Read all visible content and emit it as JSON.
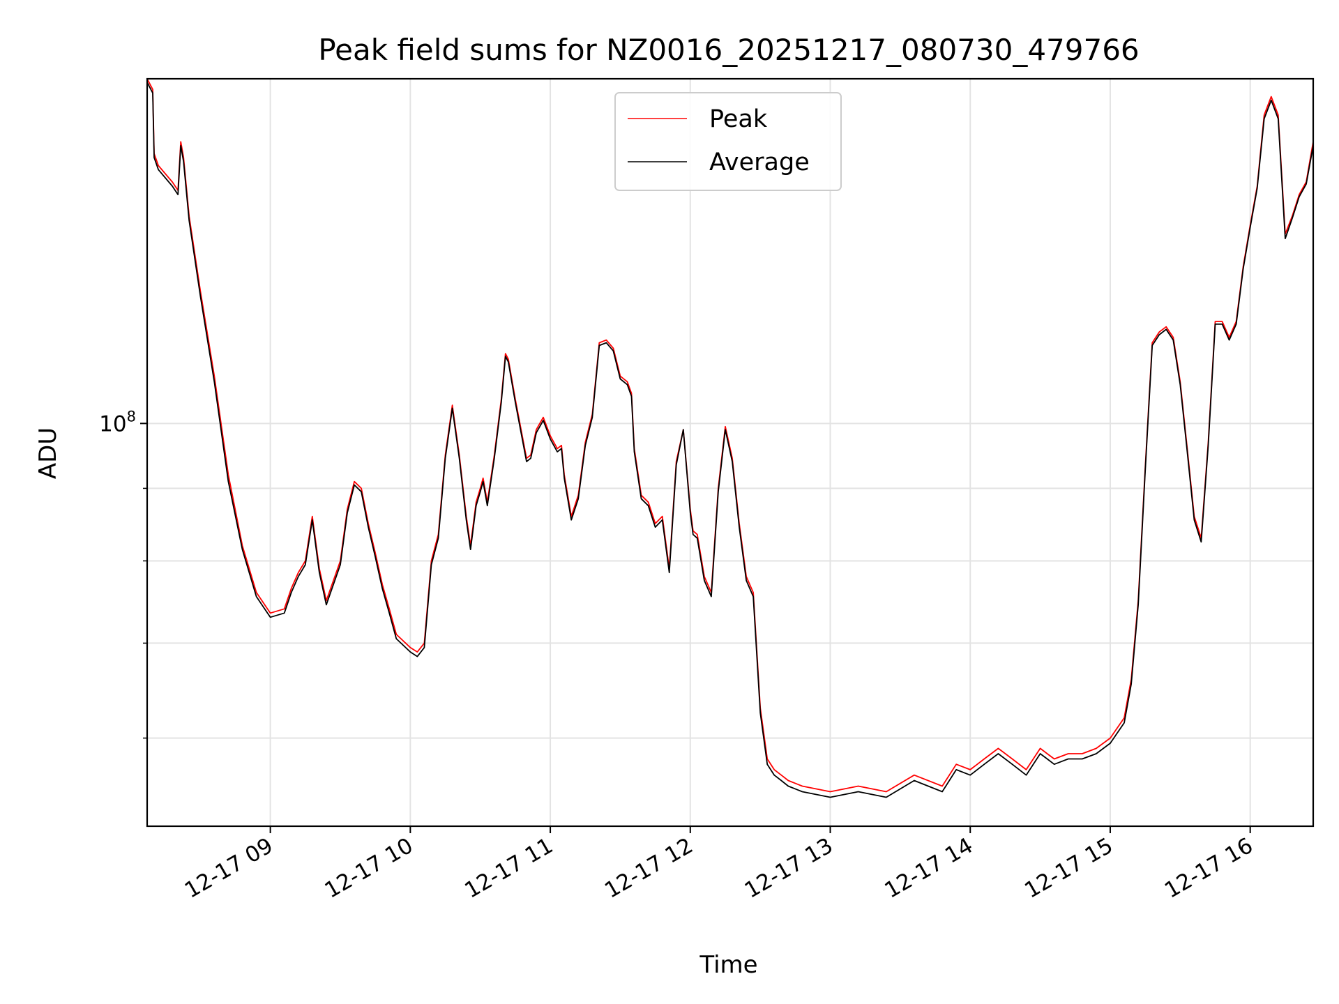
{
  "chart_data": {
    "type": "line",
    "title": "Peak field sums for NZ0016_20251217_080730_479766",
    "xlabel": "Time",
    "ylabel": "ADU",
    "x_unit": "hours since 2025-12-17 00:00",
    "xlim": [
      8.12,
      16.45
    ],
    "y_scale": "log",
    "ylim": [
      52000000,
      175000000
    ],
    "grid": true,
    "legend_position": "top-center",
    "x_ticks": [
      {
        "value": 9,
        "label": "12-17 09"
      },
      {
        "value": 10,
        "label": "12-17 10"
      },
      {
        "value": 11,
        "label": "12-17 11"
      },
      {
        "value": 12,
        "label": "12-17 12"
      },
      {
        "value": 13,
        "label": "12-17 13"
      },
      {
        "value": 14,
        "label": "12-17 14"
      },
      {
        "value": 15,
        "label": "12-17 15"
      },
      {
        "value": 16,
        "label": "12-17 16"
      }
    ],
    "y_ticks_major": [
      {
        "value": 100000000,
        "base": "10",
        "exponent": "8"
      }
    ],
    "y_ticks_minor": [
      60000000,
      70000000,
      80000000,
      90000000
    ],
    "series": [
      {
        "name": "Peak",
        "color": "#ff0000",
        "x": [
          8.12,
          8.16,
          8.17,
          8.2,
          8.3,
          8.34,
          8.36,
          8.38,
          8.42,
          8.5,
          8.6,
          8.7,
          8.8,
          8.9,
          9.0,
          9.1,
          9.15,
          9.2,
          9.25,
          9.3,
          9.35,
          9.4,
          9.5,
          9.55,
          9.6,
          9.65,
          9.7,
          9.75,
          9.8,
          9.85,
          9.9,
          10.0,
          10.05,
          10.1,
          10.15,
          10.2,
          10.25,
          10.3,
          10.35,
          10.4,
          10.43,
          10.47,
          10.5,
          10.52,
          10.55,
          10.6,
          10.65,
          10.68,
          10.7,
          10.75,
          10.8,
          10.83,
          10.86,
          10.9,
          10.95,
          11.0,
          11.05,
          11.08,
          11.1,
          11.15,
          11.2,
          11.25,
          11.3,
          11.35,
          11.4,
          11.45,
          11.5,
          11.55,
          11.58,
          11.6,
          11.65,
          11.7,
          11.75,
          11.8,
          11.85,
          11.9,
          11.95,
          12.0,
          12.02,
          12.05,
          12.1,
          12.15,
          12.2,
          12.25,
          12.3,
          12.35,
          12.4,
          12.45,
          12.5,
          12.55,
          12.6,
          12.65,
          12.7,
          12.8,
          13.0,
          13.2,
          13.4,
          13.6,
          13.8,
          13.9,
          14.0,
          14.1,
          14.2,
          14.3,
          14.4,
          14.5,
          14.55,
          14.6,
          14.7,
          14.8,
          14.9,
          15.0,
          15.1,
          15.15,
          15.2,
          15.25,
          15.3,
          15.35,
          15.4,
          15.45,
          15.5,
          15.55,
          15.6,
          15.65,
          15.7,
          15.75,
          15.8,
          15.85,
          15.9,
          15.95,
          16.0,
          16.05,
          16.1,
          16.15,
          16.2,
          16.25,
          16.3,
          16.35,
          16.4,
          16.45
        ],
        "y": [
          175000000,
          172000000,
          155000000,
          152000000,
          148000000,
          146000000,
          158000000,
          154000000,
          140000000,
          124000000,
          108000000,
          92000000,
          82000000,
          76000000,
          73500000,
          74000000,
          76500000,
          78500000,
          80000000,
          86000000,
          79000000,
          75000000,
          80000000,
          87000000,
          91000000,
          90000000,
          85000000,
          81000000,
          77000000,
          74000000,
          71000000,
          69500000,
          69000000,
          70000000,
          80000000,
          83500000,
          95000000,
          103000000,
          95000000,
          86000000,
          82000000,
          88000000,
          90000000,
          91500000,
          88000000,
          95000000,
          104000000,
          112000000,
          111000000,
          104000000,
          98000000,
          94500000,
          95000000,
          99000000,
          101000000,
          98000000,
          96000000,
          96500000,
          92000000,
          86000000,
          89000000,
          97000000,
          101500000,
          114000000,
          114500000,
          113000000,
          108000000,
          107000000,
          105000000,
          96000000,
          89000000,
          88000000,
          85000000,
          86000000,
          79000000,
          94000000,
          99000000,
          87000000,
          84000000,
          83500000,
          78000000,
          76000000,
          90000000,
          99500000,
          94500000,
          85000000,
          78000000,
          76000000,
          63000000,
          58000000,
          57000000,
          56500000,
          56000000,
          55500000,
          55000000,
          55500000,
          55000000,
          56500000,
          55500000,
          57500000,
          57000000,
          58000000,
          59000000,
          58000000,
          57000000,
          59000000,
          58500000,
          58000000,
          58500000,
          58500000,
          59000000,
          60000000,
          62000000,
          66000000,
          75000000,
          93000000,
          114000000,
          116000000,
          117000000,
          115000000,
          107000000,
          96000000,
          86000000,
          83000000,
          97000000,
          118000000,
          118000000,
          115000000,
          118000000,
          129000000,
          138000000,
          147000000,
          165000000,
          170000000,
          165000000,
          136000000,
          140000000,
          145000000,
          148000000,
          158000000
        ]
      },
      {
        "name": "Average",
        "color": "#000000",
        "x": [
          8.12,
          8.16,
          8.17,
          8.2,
          8.3,
          8.34,
          8.36,
          8.38,
          8.42,
          8.5,
          8.6,
          8.7,
          8.8,
          8.9,
          9.0,
          9.1,
          9.15,
          9.2,
          9.25,
          9.3,
          9.35,
          9.4,
          9.5,
          9.55,
          9.6,
          9.65,
          9.7,
          9.75,
          9.8,
          9.85,
          9.9,
          10.0,
          10.05,
          10.1,
          10.15,
          10.2,
          10.25,
          10.3,
          10.35,
          10.4,
          10.43,
          10.47,
          10.5,
          10.52,
          10.55,
          10.6,
          10.65,
          10.68,
          10.7,
          10.75,
          10.8,
          10.83,
          10.86,
          10.9,
          10.95,
          11.0,
          11.05,
          11.08,
          11.1,
          11.15,
          11.2,
          11.25,
          11.3,
          11.35,
          11.4,
          11.45,
          11.5,
          11.55,
          11.58,
          11.6,
          11.65,
          11.7,
          11.75,
          11.8,
          11.85,
          11.9,
          11.95,
          12.0,
          12.02,
          12.05,
          12.1,
          12.15,
          12.2,
          12.25,
          12.3,
          12.35,
          12.4,
          12.45,
          12.5,
          12.55,
          12.6,
          12.65,
          12.7,
          12.8,
          13.0,
          13.2,
          13.4,
          13.6,
          13.8,
          13.9,
          14.0,
          14.1,
          14.2,
          14.3,
          14.4,
          14.5,
          14.55,
          14.6,
          14.7,
          14.8,
          14.9,
          15.0,
          15.1,
          15.15,
          15.2,
          15.25,
          15.3,
          15.35,
          15.4,
          15.45,
          15.5,
          15.55,
          15.6,
          15.65,
          15.7,
          15.75,
          15.8,
          15.85,
          15.9,
          15.95,
          16.0,
          16.05,
          16.1,
          16.15,
          16.2,
          16.25,
          16.3,
          16.35,
          16.4,
          16.45
        ],
        "y": [
          174000000,
          171000000,
          154000000,
          151000000,
          147000000,
          145000000,
          157000000,
          153000000,
          139000000,
          123000000,
          107000000,
          91000000,
          81500000,
          75500000,
          73000000,
          73500000,
          76000000,
          78000000,
          79500000,
          85500000,
          78500000,
          74500000,
          79500000,
          86500000,
          90500000,
          89500000,
          84500000,
          80500000,
          76500000,
          73500000,
          70500000,
          69000000,
          68500000,
          69500000,
          79500000,
          83000000,
          94500000,
          102500000,
          94500000,
          85500000,
          81500000,
          87500000,
          89500000,
          91000000,
          87500000,
          94500000,
          103500000,
          111500000,
          110500000,
          103500000,
          97500000,
          94000000,
          94500000,
          98500000,
          100500000,
          97500000,
          95500000,
          96000000,
          91500000,
          85500000,
          88500000,
          96500000,
          101000000,
          113500000,
          114000000,
          112500000,
          107500000,
          106500000,
          104500000,
          95500000,
          88500000,
          87500000,
          84500000,
          85500000,
          78500000,
          93500000,
          99000000,
          86500000,
          83500000,
          83000000,
          77500000,
          75500000,
          89500000,
          99000000,
          94000000,
          84500000,
          77500000,
          75500000,
          62500000,
          57500000,
          56500000,
          56000000,
          55500000,
          55000000,
          54500000,
          55000000,
          54500000,
          56000000,
          55000000,
          57000000,
          56500000,
          57500000,
          58500000,
          57500000,
          56500000,
          58500000,
          58000000,
          57500000,
          58000000,
          58000000,
          58500000,
          59500000,
          61500000,
          65500000,
          74500000,
          92500000,
          113500000,
          115500000,
          116500000,
          114500000,
          106500000,
          95500000,
          85500000,
          82500000,
          96500000,
          117500000,
          117500000,
          114500000,
          117500000,
          128500000,
          137500000,
          146500000,
          164000000,
          169000000,
          164000000,
          135000000,
          139500000,
          144500000,
          147500000,
          157000000
        ]
      }
    ]
  }
}
